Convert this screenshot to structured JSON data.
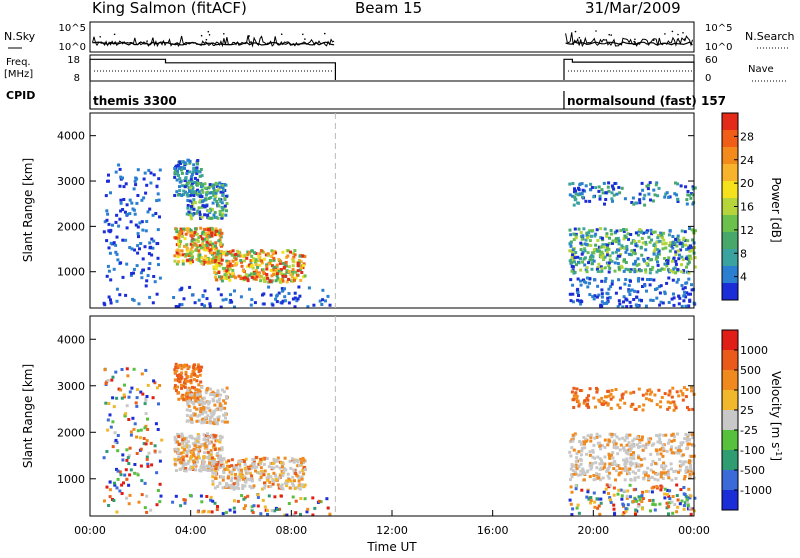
{
  "header": {
    "station": "King Salmon (fitACF)",
    "beam": "Beam 15",
    "date": "31/Mar/2009"
  },
  "chart_data": [
    {
      "type": "line",
      "panel": "noise",
      "left_label": "N.Sky",
      "right_label": "N.Search",
      "left_ticks": [
        "10^5",
        "10^0"
      ],
      "right_ticks": [
        "10^5",
        "10^0"
      ],
      "scale": "log",
      "ylim": [
        1,
        100000
      ]
    },
    {
      "type": "line",
      "panel": "frequency",
      "left_label_lines": [
        "Freq.",
        "[MHz]"
      ],
      "right_label": "Nave",
      "left_ticks": [
        "18",
        "8"
      ],
      "left_ylim": [
        8,
        18
      ],
      "right_ticks": [
        "60",
        "0"
      ],
      "right_ylim": [
        0,
        60
      ],
      "series": [
        {
          "segment": 1,
          "x": [
            "00:00",
            "03:00",
            "03:00",
            "09:45"
          ],
          "y": [
            17,
            17,
            15.5,
            15.5
          ]
        },
        {
          "segment": 2,
          "x": [
            "18:50",
            "19:10",
            "19:10",
            "24:00"
          ],
          "y": [
            17,
            17,
            15.8,
            15.8
          ]
        }
      ]
    },
    {
      "type": "text",
      "panel": "cpid",
      "label": "CPID",
      "segments": [
        {
          "name": "themis 3300",
          "start": "00:00",
          "end": "09:45"
        },
        {
          "name": "normalsound (fast) 157",
          "start": "18:50",
          "end": "24:00"
        }
      ]
    },
    {
      "type": "heatmap",
      "panel": "power",
      "ylabel": "Slant Range [km]",
      "yticks": [
        "1000",
        "2000",
        "3000",
        "4000"
      ],
      "ylim": [
        200,
        4500
      ],
      "colorbar_label": "Power [dB]",
      "colorbar_ticks": [
        "4",
        "8",
        "12",
        "16",
        "20",
        "24",
        "28"
      ],
      "colorbar_colors": [
        "#1a2dd6",
        "#2a7fd0",
        "#3aa3a0",
        "#47a86a",
        "#6cc04c",
        "#b5d53a",
        "#f5e21c",
        "#f7b32b",
        "#f28a1c",
        "#ef5d17",
        "#e42a18"
      ],
      "crange": [
        0,
        30
      ]
    },
    {
      "type": "heatmap",
      "panel": "velocity",
      "ylabel": "Slant Range [km]",
      "yticks": [
        "1000",
        "2000",
        "3000",
        "4000"
      ],
      "ylim": [
        200,
        4500
      ],
      "colorbar_label": "Velocity [m s^-1]",
      "colorbar_ticks": [
        "1000",
        "500",
        "100",
        "25",
        "-25",
        "-100",
        "-500",
        "-1000"
      ],
      "colorbar_colors": [
        "#1a2dd6",
        "#3b6ad9",
        "#2f9c72",
        "#57c13d",
        "#c8c8c8",
        "#f0b82a",
        "#f08a1f",
        "#ea5a1a",
        "#e01e17"
      ],
      "xticks": [
        "00:00",
        "04:00",
        "08:00",
        "12:00",
        "16:00",
        "20:00",
        "00:00"
      ],
      "xlabel": "Time UT",
      "xlim": [
        0,
        24
      ]
    }
  ]
}
